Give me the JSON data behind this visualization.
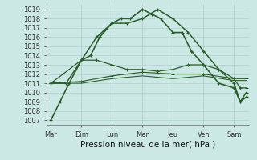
{
  "x_labels": [
    "Mar",
    "Dim",
    "Lun",
    "Mer",
    "Jeu",
    "Ven",
    "Sam"
  ],
  "x_tick_positions": [
    0,
    1,
    2,
    3,
    4,
    5,
    6
  ],
  "yticks": [
    1007,
    1008,
    1009,
    1010,
    1011,
    1012,
    1013,
    1014,
    1015,
    1016,
    1017,
    1018,
    1019
  ],
  "ylim": [
    1006.5,
    1019.5
  ],
  "xlim": [
    -0.15,
    6.5
  ],
  "bg_color": "#cce8e4",
  "grid_color": "#aaccca",
  "line_color": "#2a5e2a",
  "xlabel": "Pression niveau de la mer( hPa )",
  "xlabel_fontsize": 7.5,
  "tick_fontsize": 6,
  "line1_x": [
    0,
    0.3,
    0.6,
    1.0,
    1.3,
    1.6,
    2.0,
    2.3,
    2.6,
    3.0,
    3.3,
    3.6,
    4.0,
    4.3,
    4.6,
    5.0,
    5.5,
    6.0,
    6.2,
    6.4
  ],
  "line1_y": [
    1007,
    1009,
    1011,
    1013.5,
    1014,
    1016,
    1017.5,
    1018,
    1018,
    1019,
    1018.5,
    1018,
    1016.5,
    1016.5,
    1014.5,
    1013,
    1011,
    1010.5,
    1009,
    1009.5
  ],
  "line2_x": [
    0,
    0.5,
    1.0,
    1.5,
    2.0,
    2.5,
    3.0,
    3.5,
    4.0,
    4.5,
    5.0,
    5.5,
    6.0,
    6.2,
    6.4
  ],
  "line2_y": [
    1011,
    1011,
    1013.5,
    1016,
    1017.5,
    1017.5,
    1018,
    1019,
    1018,
    1016.5,
    1014.5,
    1012.5,
    1011,
    1009,
    1010
  ],
  "line3_x": [
    0,
    1.0,
    1.5,
    2.0,
    2.5,
    3.0,
    3.5,
    4.0,
    4.5,
    5.0,
    5.5,
    6.0,
    6.2,
    6.4
  ],
  "line3_y": [
    1011,
    1013.5,
    1013.5,
    1013,
    1012.5,
    1012.5,
    1012.3,
    1012.5,
    1013,
    1013,
    1012.5,
    1011.5,
    1010.5,
    1010.5
  ],
  "line4_x": [
    0,
    1,
    2,
    3,
    4,
    5,
    6,
    6.4
  ],
  "line4_y": [
    1011,
    1011.2,
    1011.8,
    1012.2,
    1012.0,
    1012.0,
    1011.5,
    1011.5
  ],
  "line5_x": [
    0,
    1,
    2,
    3,
    4,
    5,
    6,
    6.4
  ],
  "line5_y": [
    1011,
    1011.0,
    1011.5,
    1011.8,
    1011.5,
    1011.8,
    1011.3,
    1011.3
  ]
}
